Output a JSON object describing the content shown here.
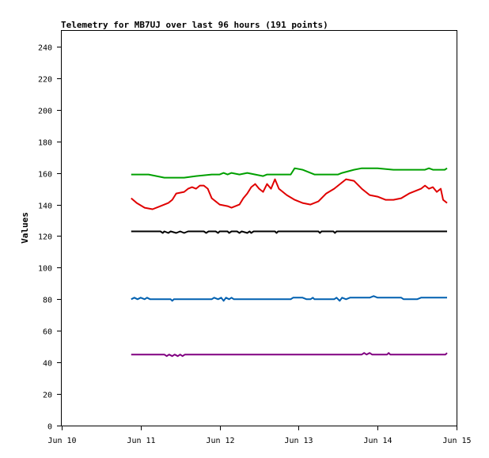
{
  "chart_data": {
    "type": "line",
    "title": "Telemetry for MB7UJ over last 96 hours (191 points)",
    "xlabel": "",
    "ylabel": "Values",
    "ylim": [
      0,
      250
    ],
    "xlim": [
      10,
      15
    ],
    "grid": false,
    "legend": "none",
    "x_ticks": [
      {
        "x": 10,
        "label": "Jun 10"
      },
      {
        "x": 11,
        "label": "Jun 11"
      },
      {
        "x": 12,
        "label": "Jun 12"
      },
      {
        "x": 13,
        "label": "Jun 13"
      },
      {
        "x": 14,
        "label": "Jun 14"
      },
      {
        "x": 15,
        "label": "Jun 15"
      }
    ],
    "y_ticks": [
      0,
      20,
      40,
      60,
      80,
      100,
      120,
      140,
      160,
      180,
      200,
      220,
      240
    ],
    "series": [
      {
        "color": "#00a000",
        "points": [
          [
            10.88,
            159
          ],
          [
            11.1,
            159
          ],
          [
            11.3,
            157
          ],
          [
            11.55,
            157
          ],
          [
            11.7,
            158
          ],
          [
            11.9,
            159
          ],
          [
            12.0,
            159
          ],
          [
            12.05,
            160
          ],
          [
            12.1,
            159
          ],
          [
            12.15,
            160
          ],
          [
            12.25,
            159
          ],
          [
            12.35,
            160
          ],
          [
            12.45,
            159
          ],
          [
            12.55,
            158
          ],
          [
            12.6,
            159
          ],
          [
            12.9,
            159
          ],
          [
            12.95,
            163
          ],
          [
            13.05,
            162
          ],
          [
            13.15,
            160
          ],
          [
            13.2,
            159
          ],
          [
            13.5,
            159
          ],
          [
            13.55,
            160
          ],
          [
            13.7,
            162
          ],
          [
            13.8,
            163
          ],
          [
            14.0,
            163
          ],
          [
            14.2,
            162
          ],
          [
            14.35,
            162
          ],
          [
            14.5,
            162
          ],
          [
            14.6,
            162
          ],
          [
            14.65,
            163
          ],
          [
            14.7,
            162
          ],
          [
            14.85,
            162
          ],
          [
            14.88,
            163
          ]
        ]
      },
      {
        "color": "#e00000",
        "points": [
          [
            10.88,
            144
          ],
          [
            10.95,
            141
          ],
          [
            11.05,
            138
          ],
          [
            11.15,
            137
          ],
          [
            11.25,
            139
          ],
          [
            11.35,
            141
          ],
          [
            11.4,
            143
          ],
          [
            11.45,
            147
          ],
          [
            11.55,
            148
          ],
          [
            11.6,
            150
          ],
          [
            11.65,
            151
          ],
          [
            11.7,
            150
          ],
          [
            11.75,
            152
          ],
          [
            11.8,
            152
          ],
          [
            11.85,
            150
          ],
          [
            11.9,
            144
          ],
          [
            12.0,
            140
          ],
          [
            12.1,
            139
          ],
          [
            12.15,
            138
          ],
          [
            12.25,
            140
          ],
          [
            12.3,
            144
          ],
          [
            12.35,
            147
          ],
          [
            12.4,
            151
          ],
          [
            12.45,
            153
          ],
          [
            12.5,
            150
          ],
          [
            12.55,
            148
          ],
          [
            12.6,
            153
          ],
          [
            12.65,
            150
          ],
          [
            12.7,
            156
          ],
          [
            12.75,
            150
          ],
          [
            12.85,
            146
          ],
          [
            12.95,
            143
          ],
          [
            13.05,
            141
          ],
          [
            13.15,
            140
          ],
          [
            13.25,
            142
          ],
          [
            13.35,
            147
          ],
          [
            13.45,
            150
          ],
          [
            13.55,
            154
          ],
          [
            13.6,
            156
          ],
          [
            13.7,
            155
          ],
          [
            13.8,
            150
          ],
          [
            13.9,
            146
          ],
          [
            14.0,
            145
          ],
          [
            14.1,
            143
          ],
          [
            14.2,
            143
          ],
          [
            14.3,
            144
          ],
          [
            14.4,
            147
          ],
          [
            14.5,
            149
          ],
          [
            14.55,
            150
          ],
          [
            14.6,
            152
          ],
          [
            14.65,
            150
          ],
          [
            14.7,
            151
          ],
          [
            14.75,
            148
          ],
          [
            14.8,
            150
          ],
          [
            14.83,
            143
          ],
          [
            14.88,
            141
          ]
        ]
      },
      {
        "color": "#000000",
        "points": [
          [
            10.88,
            123
          ],
          [
            11.25,
            123
          ],
          [
            11.28,
            122
          ],
          [
            11.3,
            123
          ],
          [
            11.35,
            122
          ],
          [
            11.38,
            123
          ],
          [
            11.45,
            122
          ],
          [
            11.5,
            123
          ],
          [
            11.55,
            122
          ],
          [
            11.6,
            123
          ],
          [
            11.8,
            123
          ],
          [
            11.83,
            122
          ],
          [
            11.86,
            123
          ],
          [
            11.95,
            123
          ],
          [
            11.98,
            122
          ],
          [
            12.0,
            123
          ],
          [
            12.1,
            123
          ],
          [
            12.12,
            122
          ],
          [
            12.15,
            123
          ],
          [
            12.22,
            123
          ],
          [
            12.25,
            122
          ],
          [
            12.28,
            123
          ],
          [
            12.35,
            122
          ],
          [
            12.38,
            123
          ],
          [
            12.4,
            122
          ],
          [
            12.43,
            123
          ],
          [
            12.7,
            123
          ],
          [
            12.72,
            122
          ],
          [
            12.74,
            123
          ],
          [
            13.25,
            123
          ],
          [
            13.27,
            122
          ],
          [
            13.29,
            123
          ],
          [
            13.44,
            123
          ],
          [
            13.46,
            122
          ],
          [
            13.48,
            123
          ],
          [
            14.88,
            123
          ]
        ]
      },
      {
        "color": "#0060b0",
        "points": [
          [
            10.88,
            80
          ],
          [
            10.92,
            81
          ],
          [
            10.96,
            80
          ],
          [
            11.0,
            81
          ],
          [
            11.05,
            80
          ],
          [
            11.08,
            81
          ],
          [
            11.12,
            80
          ],
          [
            11.38,
            80
          ],
          [
            11.4,
            79
          ],
          [
            11.42,
            80
          ],
          [
            11.9,
            80
          ],
          [
            11.93,
            81
          ],
          [
            11.98,
            80
          ],
          [
            12.02,
            81
          ],
          [
            12.05,
            79
          ],
          [
            12.08,
            81
          ],
          [
            12.12,
            80
          ],
          [
            12.15,
            81
          ],
          [
            12.18,
            80
          ],
          [
            12.9,
            80
          ],
          [
            12.93,
            81
          ],
          [
            13.05,
            81
          ],
          [
            13.1,
            80
          ],
          [
            13.15,
            80
          ],
          [
            13.18,
            81
          ],
          [
            13.2,
            80
          ],
          [
            13.45,
            80
          ],
          [
            13.48,
            81
          ],
          [
            13.52,
            79
          ],
          [
            13.55,
            81
          ],
          [
            13.6,
            80
          ],
          [
            13.65,
            81
          ],
          [
            13.9,
            81
          ],
          [
            13.95,
            82
          ],
          [
            14.0,
            81
          ],
          [
            14.3,
            81
          ],
          [
            14.33,
            80
          ],
          [
            14.4,
            80
          ],
          [
            14.5,
            80
          ],
          [
            14.55,
            81
          ],
          [
            14.88,
            81
          ]
        ]
      },
      {
        "color": "#800080",
        "points": [
          [
            10.88,
            45
          ],
          [
            11.3,
            45
          ],
          [
            11.33,
            44
          ],
          [
            11.36,
            45
          ],
          [
            11.4,
            44
          ],
          [
            11.43,
            45
          ],
          [
            11.47,
            44
          ],
          [
            11.5,
            45
          ],
          [
            11.53,
            44
          ],
          [
            11.56,
            45
          ],
          [
            13.8,
            45
          ],
          [
            13.83,
            46
          ],
          [
            13.86,
            45
          ],
          [
            13.9,
            46
          ],
          [
            13.93,
            45
          ],
          [
            14.12,
            45
          ],
          [
            14.14,
            46
          ],
          [
            14.16,
            45
          ],
          [
            14.86,
            45
          ],
          [
            14.88,
            46
          ]
        ]
      }
    ]
  }
}
